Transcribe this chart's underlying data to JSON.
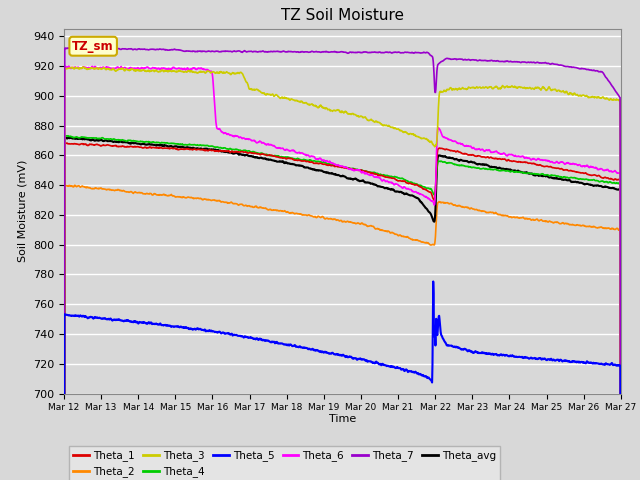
{
  "title": "TZ Soil Moisture",
  "xlabel": "Time",
  "ylabel": "Soil Moisture (mV)",
  "ylim": [
    700,
    945
  ],
  "yticks": [
    700,
    720,
    740,
    760,
    780,
    800,
    820,
    840,
    860,
    880,
    900,
    920,
    940
  ],
  "xtick_labels": [
    "Mar 12",
    "Mar 13",
    "Mar 14",
    "Mar 15",
    "Mar 16",
    "Mar 17",
    "Mar 18",
    "Mar 19",
    "Mar 20",
    "Mar 21",
    "Mar 22",
    "Mar 23",
    "Mar 24",
    "Mar 25",
    "Mar 26",
    "Mar 27"
  ],
  "colors": {
    "Theta_1": "#dd0000",
    "Theta_2": "#ff8800",
    "Theta_3": "#cccc00",
    "Theta_4": "#00cc00",
    "Theta_5": "#0000ff",
    "Theta_6": "#ff00ff",
    "Theta_7": "#9900cc",
    "Theta_avg": "#000000"
  },
  "legend_label": "TZ_sm",
  "legend_label_color": "#cc0000",
  "legend_bg": "#ffffcc",
  "legend_border": "#ccaa00",
  "plot_bg": "#d8d8d8",
  "fig_bg": "#d8d8d8",
  "grid_color": "#ffffff",
  "title_fontsize": 11,
  "axis_fontsize": 8,
  "tick_fontsize": 8
}
